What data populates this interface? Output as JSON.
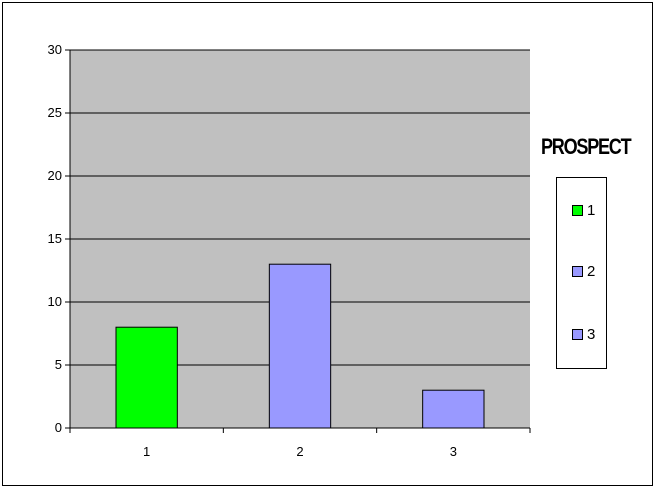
{
  "chart_data": {
    "type": "bar",
    "categories": [
      "1",
      "2",
      "3"
    ],
    "values": [
      8,
      13,
      3
    ],
    "bar_colors": [
      "#00ff00",
      "#9999ff",
      "#9999ff"
    ],
    "ylim": [
      0,
      30
    ],
    "yticks": [
      0,
      5,
      10,
      15,
      20,
      25,
      30
    ],
    "grid": true,
    "plot_background": "#c0c0c0",
    "legend": {
      "title": "PROSPECT",
      "position": "right",
      "entries": [
        {
          "label": "1",
          "color": "#00ff00"
        },
        {
          "label": "2",
          "color": "#9999ff"
        },
        {
          "label": "3",
          "color": "#9999ff"
        }
      ]
    }
  }
}
